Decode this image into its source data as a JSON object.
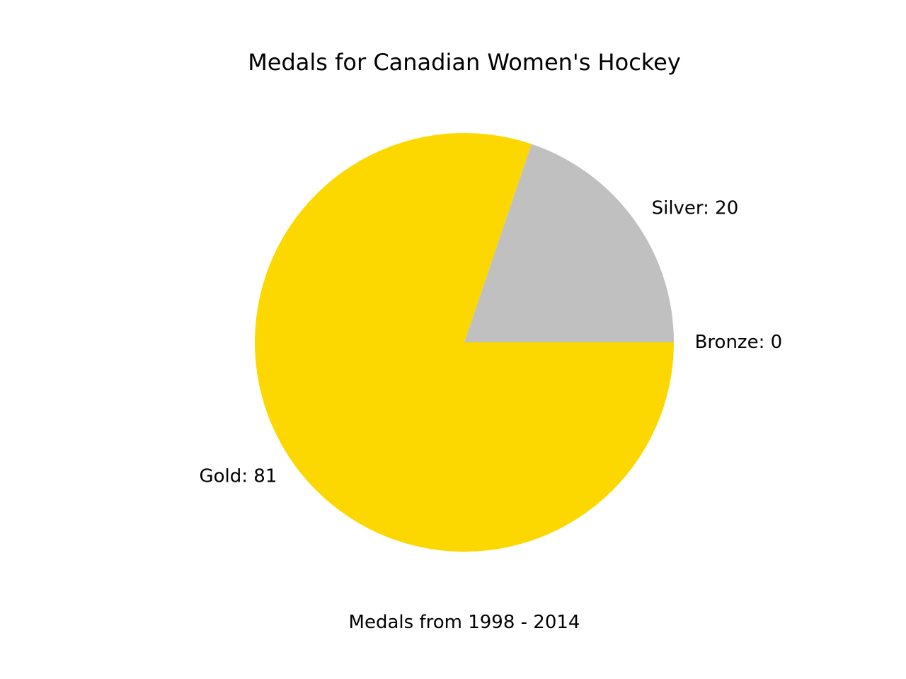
{
  "chart_data": {
    "type": "pie",
    "title": "Medals for Canadian Women's Hockey",
    "xlabel": "Medals from 1998 - 2014",
    "ylabel": "",
    "start_angle_deg": 0,
    "direction": "clockwise",
    "slices": [
      {
        "label": "Gold",
        "value": 81,
        "display": "Gold: 81",
        "color": "#FCD700"
      },
      {
        "label": "Silver",
        "value": 20,
        "display": "Silver: 20",
        "color": "#C0C0C0"
      },
      {
        "label": "Bronze",
        "value": 0,
        "display": "Bronze: 0",
        "color": "#CD7F32"
      }
    ],
    "legend": "none",
    "grid": false
  }
}
